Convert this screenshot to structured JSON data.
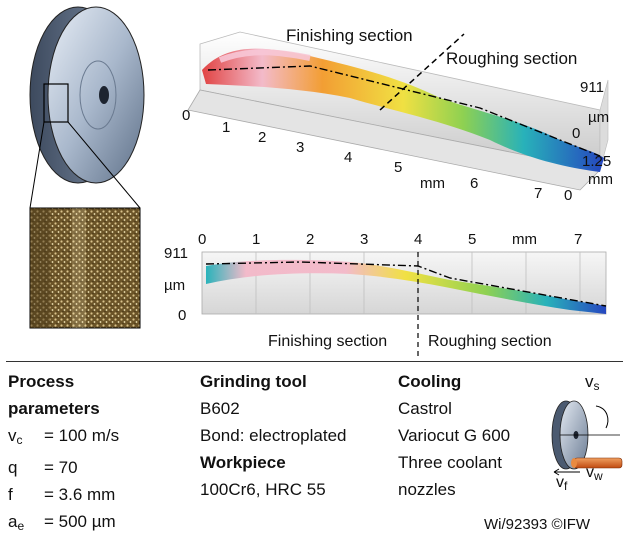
{
  "top_plot": {
    "label_finishing": "Finishing section",
    "label_roughing": "Roughing section",
    "x_ticks": [
      "0",
      "1",
      "2",
      "3",
      "4",
      "5",
      "6",
      "7"
    ],
    "x_unit": "mm",
    "z_max": "911",
    "z_unit": "µm",
    "z_min": "0",
    "y_max": "1.25",
    "y_unit": "mm",
    "y_min": "0"
  },
  "bottom_plot": {
    "x_ticks": [
      "0",
      "1",
      "2",
      "3",
      "4",
      "5",
      "mm",
      "7"
    ],
    "y_max": "911",
    "y_unit": "µm",
    "y_min": "0",
    "label_finishing": "Finishing section",
    "label_roughing": "Roughing section"
  },
  "columns": {
    "process": {
      "title_line1": "Process",
      "title_line2": "parameters",
      "rows": [
        {
          "sym": "v",
          "sub": "c",
          "val": "= 100 m/s"
        },
        {
          "sym": "q",
          "sub": "",
          "val": "= 70"
        },
        {
          "sym": "f",
          "sub": "",
          "val": "= 3.6 mm"
        },
        {
          "sym": "a",
          "sub": "e",
          "val": "= 500 µm"
        }
      ]
    },
    "tool": {
      "title": "Grinding tool",
      "line1": "B602",
      "line2": "Bond: electroplated",
      "workpiece_title": "Workpiece",
      "workpiece": "100Cr6, HRC 55"
    },
    "cooling": {
      "title": "Cooling",
      "line1": "Castrol",
      "line2": "Variocut G 600",
      "line3": "Three coolant",
      "line4": "nozzles"
    }
  },
  "schematic": {
    "vs": "v",
    "vs_sub": "s",
    "vf": "v",
    "vf_sub": "f",
    "vw": "v",
    "vw_sub": "w"
  },
  "credit": "Wi/92393 ©IFW"
}
